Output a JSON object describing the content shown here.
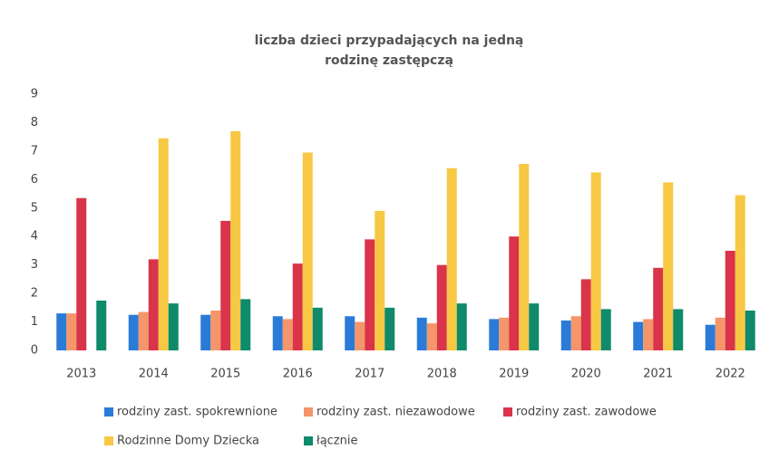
{
  "chart_data": {
    "type": "bar",
    "title": "liczba dzieci przypadających na jedną rodzinę zastępczą",
    "categories": [
      "2013",
      "2014",
      "2015",
      "2016",
      "2017",
      "2018",
      "2019",
      "2020",
      "2021",
      "2022"
    ],
    "series": [
      {
        "name": "rodziny zast. spokrewnione",
        "color": "#2a7bd8",
        "values": [
          1.3,
          1.25,
          1.25,
          1.2,
          1.2,
          1.15,
          1.1,
          1.05,
          1.0,
          0.9
        ]
      },
      {
        "name": "rodziny zast. niezawodowe",
        "color": "#f4956a",
        "values": [
          1.3,
          1.35,
          1.4,
          1.1,
          1.0,
          0.95,
          1.15,
          1.2,
          1.1,
          1.15
        ]
      },
      {
        "name": "rodziny zast. zawodowe",
        "color": "#d9344a",
        "values": [
          5.35,
          3.2,
          4.55,
          3.05,
          3.9,
          3.0,
          4.0,
          2.5,
          2.9,
          3.5
        ]
      },
      {
        "name": "Rodzinne Domy Dziecka",
        "color": "#f7c843",
        "values": [
          null,
          7.45,
          7.7,
          6.95,
          4.9,
          6.4,
          6.55,
          6.25,
          5.9,
          5.45
        ]
      },
      {
        "name": "łącznie",
        "color": "#0f8a6a",
        "values": [
          1.75,
          1.65,
          1.8,
          1.5,
          1.5,
          1.65,
          1.65,
          1.45,
          1.45,
          1.4
        ]
      }
    ],
    "ylim": [
      0,
      9
    ],
    "yticks": [
      0,
      1,
      2,
      3,
      4,
      5,
      6,
      7,
      8,
      9
    ],
    "grid": false
  }
}
